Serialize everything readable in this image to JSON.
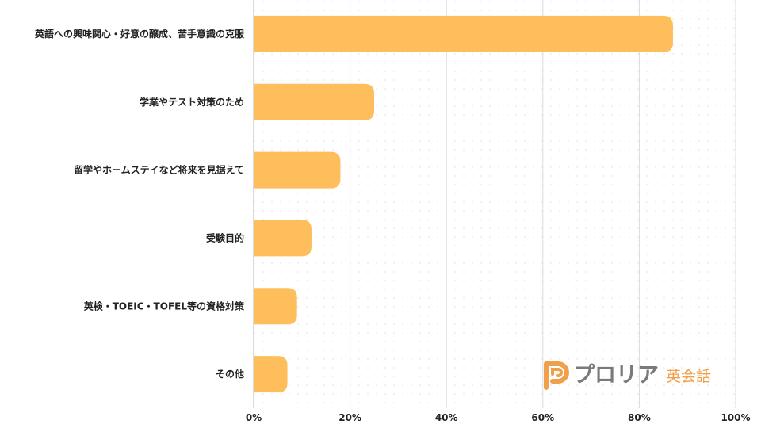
{
  "chart_data": {
    "type": "bar",
    "orientation": "horizontal",
    "categories": [
      "英語への興味関心・好意の醸成、苦手意識の克服",
      "学業やテスト対策のため",
      "留学やホームステイなど将来を見据えて",
      "受験目的",
      "英検・TOEIC・TOFEL等の資格対策",
      "その他"
    ],
    "values": [
      87,
      25,
      18,
      12,
      9,
      7
    ],
    "unit": "%",
    "xlim": [
      0,
      100
    ],
    "ticks": [
      "0%",
      "20%",
      "40%",
      "60%",
      "80%",
      "100%"
    ],
    "grid": true,
    "bar_color": "#ffbe5c"
  },
  "watermark": {
    "name": "プロリア",
    "sub": "英会話",
    "icon": "proria-p-logo-icon"
  }
}
